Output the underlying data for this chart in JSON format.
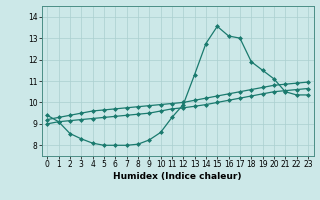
{
  "xlabel": "Humidex (Indice chaleur)",
  "x": [
    0,
    1,
    2,
    3,
    4,
    5,
    6,
    7,
    8,
    9,
    10,
    11,
    12,
    13,
    14,
    15,
    16,
    17,
    18,
    19,
    20,
    21,
    22,
    23
  ],
  "line1": [
    9.4,
    9.1,
    8.55,
    8.3,
    8.1,
    8.0,
    8.0,
    8.0,
    8.05,
    8.25,
    8.6,
    9.3,
    9.9,
    11.3,
    12.75,
    13.55,
    13.1,
    13.0,
    11.9,
    11.5,
    11.1,
    10.5,
    10.35,
    10.35
  ],
  "line2": [
    9.2,
    9.3,
    9.4,
    9.5,
    9.6,
    9.65,
    9.7,
    9.75,
    9.8,
    9.85,
    9.9,
    9.95,
    10.0,
    10.1,
    10.2,
    10.3,
    10.4,
    10.5,
    10.6,
    10.7,
    10.8,
    10.85,
    10.9,
    10.95
  ],
  "line3": [
    9.0,
    9.1,
    9.15,
    9.2,
    9.25,
    9.3,
    9.35,
    9.4,
    9.45,
    9.5,
    9.6,
    9.7,
    9.75,
    9.82,
    9.9,
    10.0,
    10.1,
    10.2,
    10.3,
    10.4,
    10.5,
    10.55,
    10.6,
    10.65
  ],
  "line_color": "#1a7a6e",
  "bg_color": "#cce8e8",
  "grid_color": "#aacfcf",
  "ylim": [
    7.5,
    14.5
  ],
  "xlim": [
    -0.5,
    23.5
  ],
  "yticks": [
    8,
    9,
    10,
    11,
    12,
    13,
    14
  ],
  "xticks": [
    0,
    1,
    2,
    3,
    4,
    5,
    6,
    7,
    8,
    9,
    10,
    11,
    12,
    13,
    14,
    15,
    16,
    17,
    18,
    19,
    20,
    21,
    22,
    23
  ],
  "marker": "D",
  "marker_size": 2.0,
  "linewidth": 0.9,
  "tick_fontsize": 5.5,
  "xlabel_fontsize": 6.5
}
